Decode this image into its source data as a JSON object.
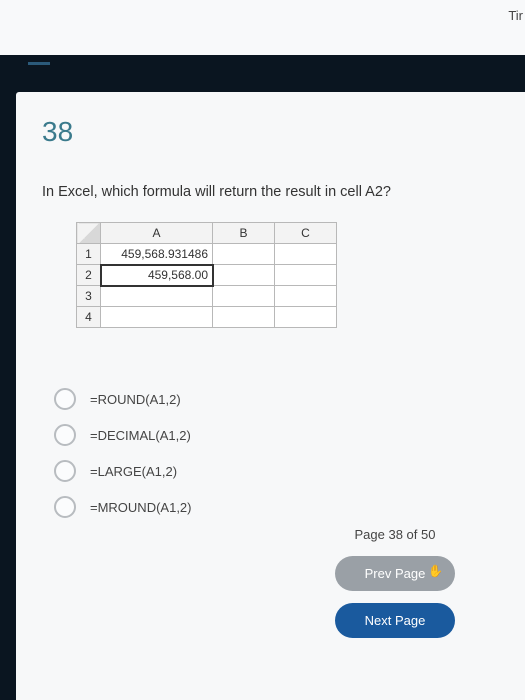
{
  "top_corner": "Tir",
  "question": {
    "number": "38",
    "text": "In Excel, which formula will return the result in cell A2?"
  },
  "excel": {
    "columns": [
      "A",
      "B",
      "C"
    ],
    "rows": [
      {
        "num": "1",
        "a": "459,568.931486"
      },
      {
        "num": "2",
        "a": "459,568.00",
        "boxed": true
      },
      {
        "num": "3",
        "a": ""
      },
      {
        "num": "4",
        "a": ""
      }
    ]
  },
  "options": [
    "=ROUND(A1,2)",
    "=DECIMAL(A1,2)",
    "=LARGE(A1,2)",
    "=MROUND(A1,2)"
  ],
  "footer": {
    "page_indicator": "Page 38 of 50",
    "prev_label": "Prev Page",
    "next_label": "Next Page"
  }
}
